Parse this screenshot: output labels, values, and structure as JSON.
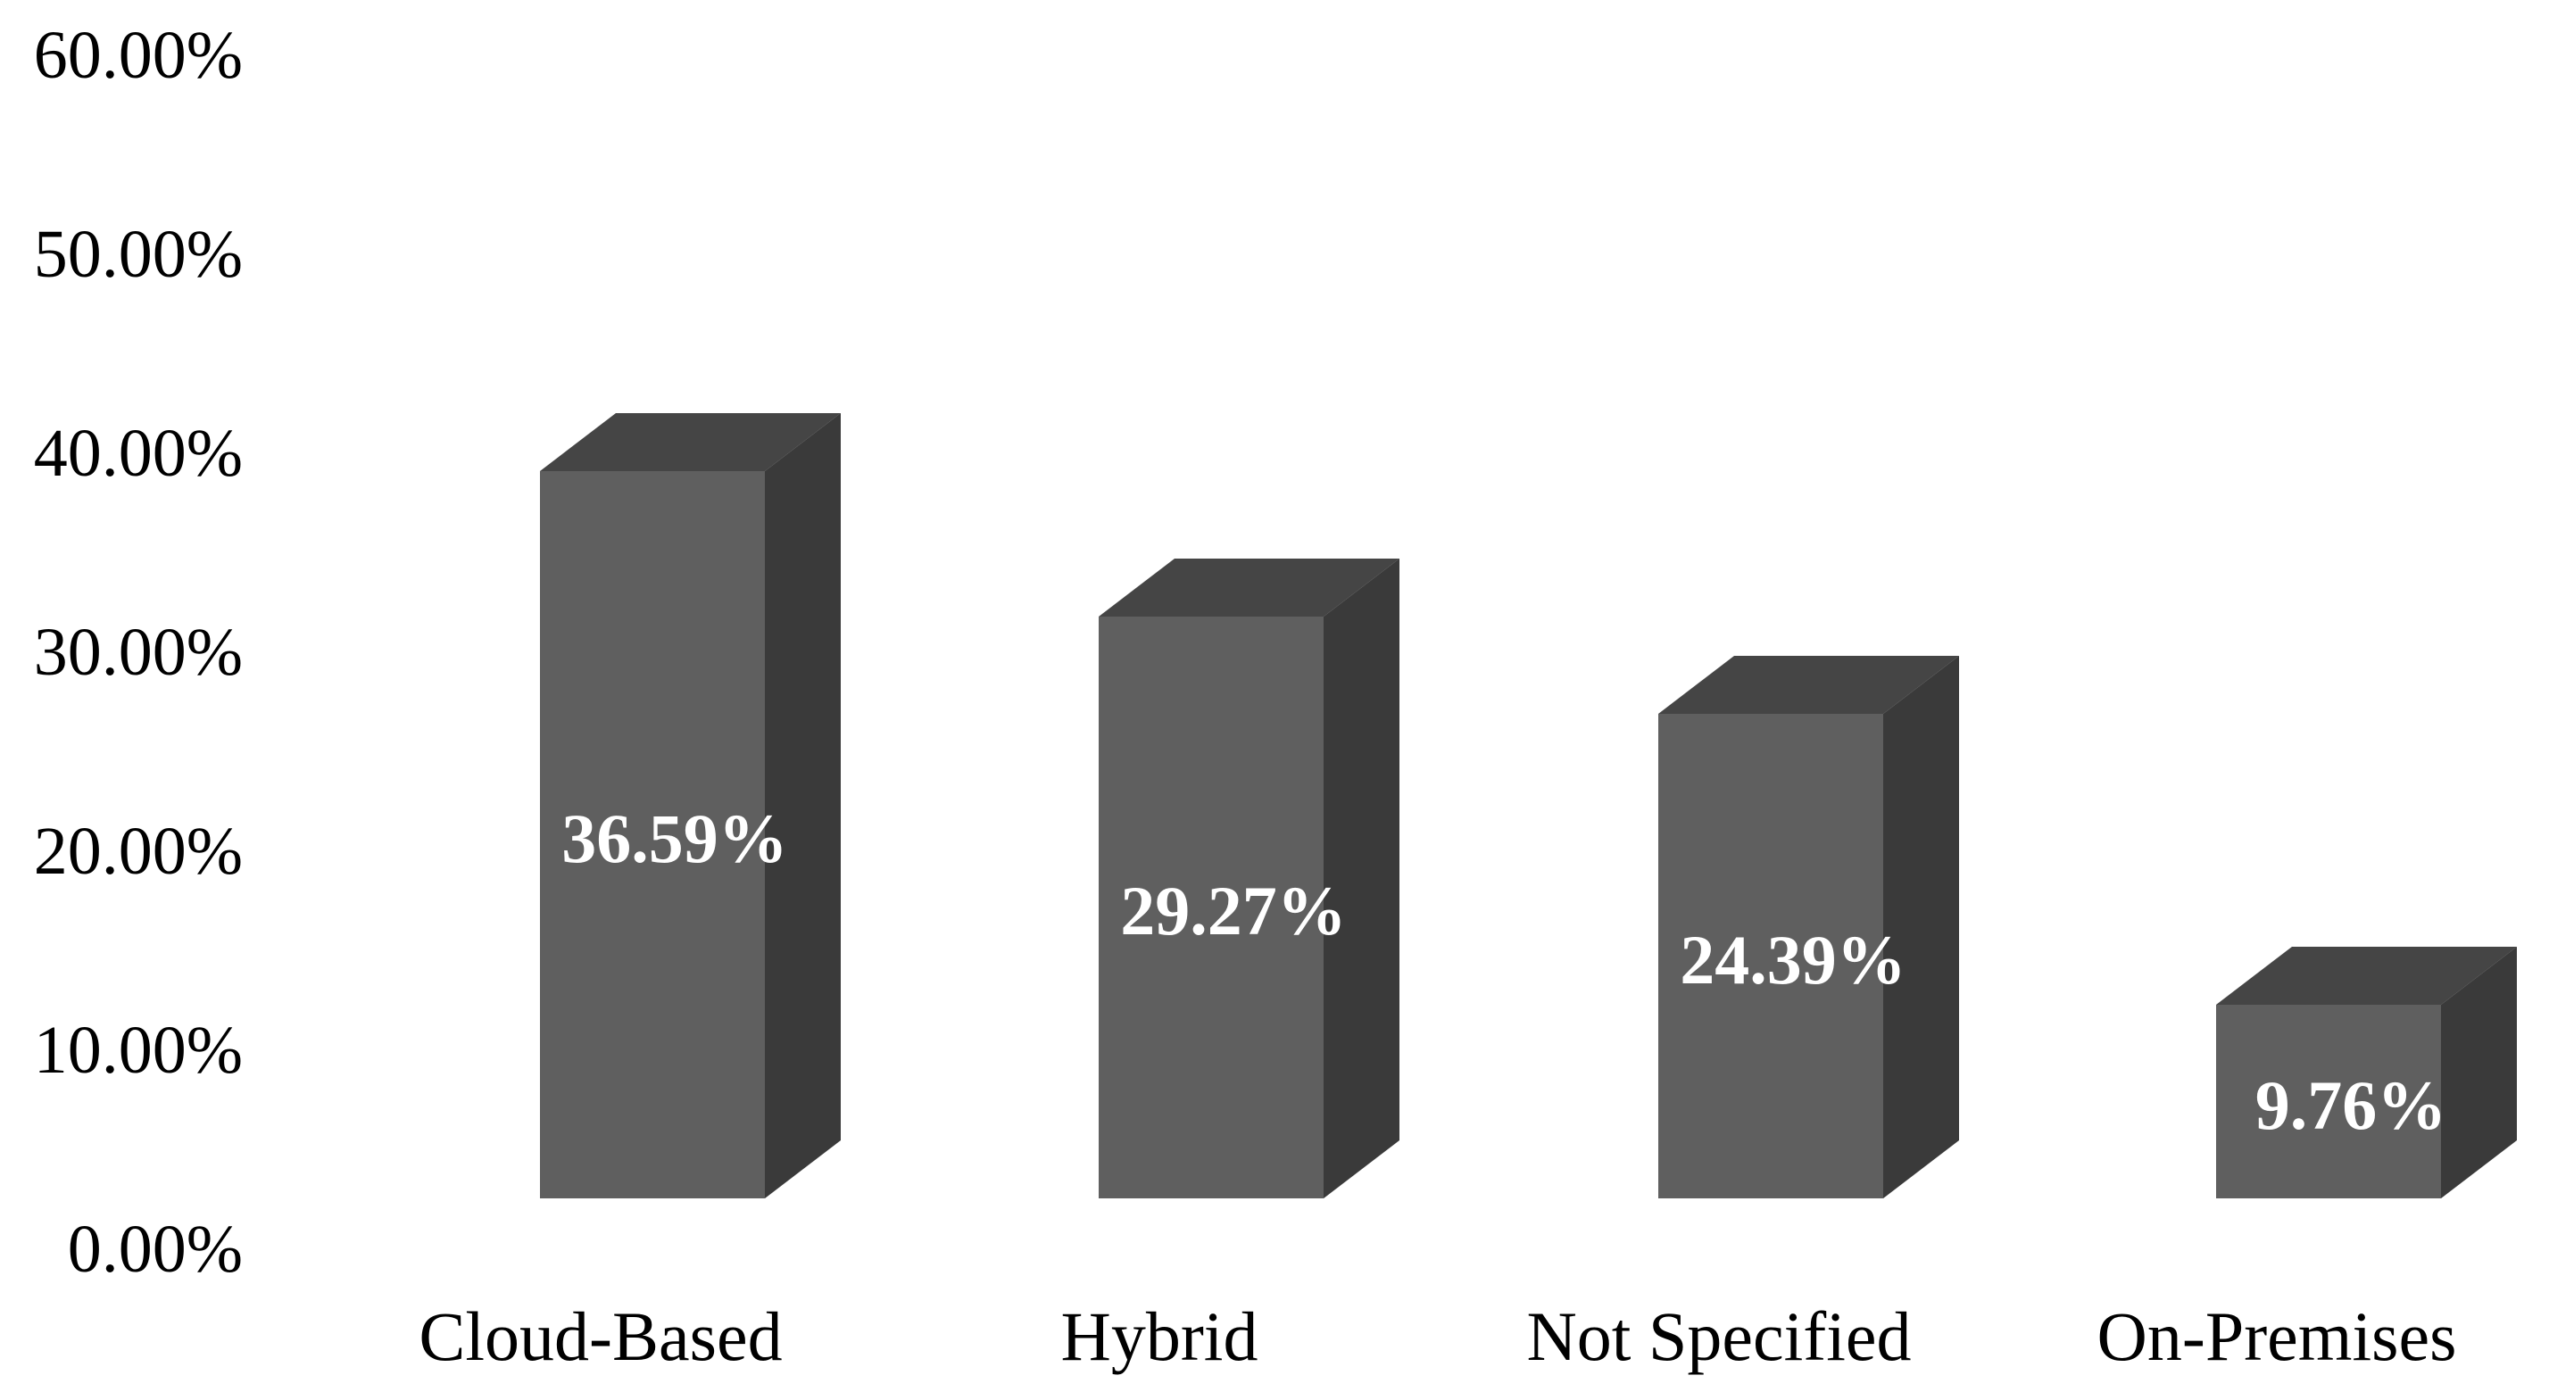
{
  "chart_data": {
    "type": "bar",
    "style": "3d-column",
    "title": "",
    "xlabel": "",
    "ylabel": "",
    "categories": [
      "Cloud-Based",
      "Hybrid",
      "Not Specified",
      "On-Premises"
    ],
    "values": [
      36.59,
      29.27,
      24.39,
      9.76
    ],
    "value_labels": [
      "36.59%",
      "29.27%",
      "24.39%",
      "9.76%"
    ],
    "y_ticks": [
      {
        "value": 60,
        "label": "60.00%"
      },
      {
        "value": 50,
        "label": "50.00%"
      },
      {
        "value": 40,
        "label": "40.00%"
      },
      {
        "value": 30,
        "label": "30.00%"
      },
      {
        "value": 20,
        "label": "20.00%"
      },
      {
        "value": 10,
        "label": "10.00%"
      },
      {
        "value": 0,
        "label": "0.00%"
      }
    ],
    "ylim": [
      0,
      60
    ],
    "grid": false,
    "legend": false,
    "colors": {
      "background": "#ffffff",
      "bar_front": "#5f5f5f",
      "bar_top": "#454545",
      "bar_side": "#3a3a3a",
      "data_label_text": "#ffffff",
      "axis_text": "#000000"
    }
  }
}
